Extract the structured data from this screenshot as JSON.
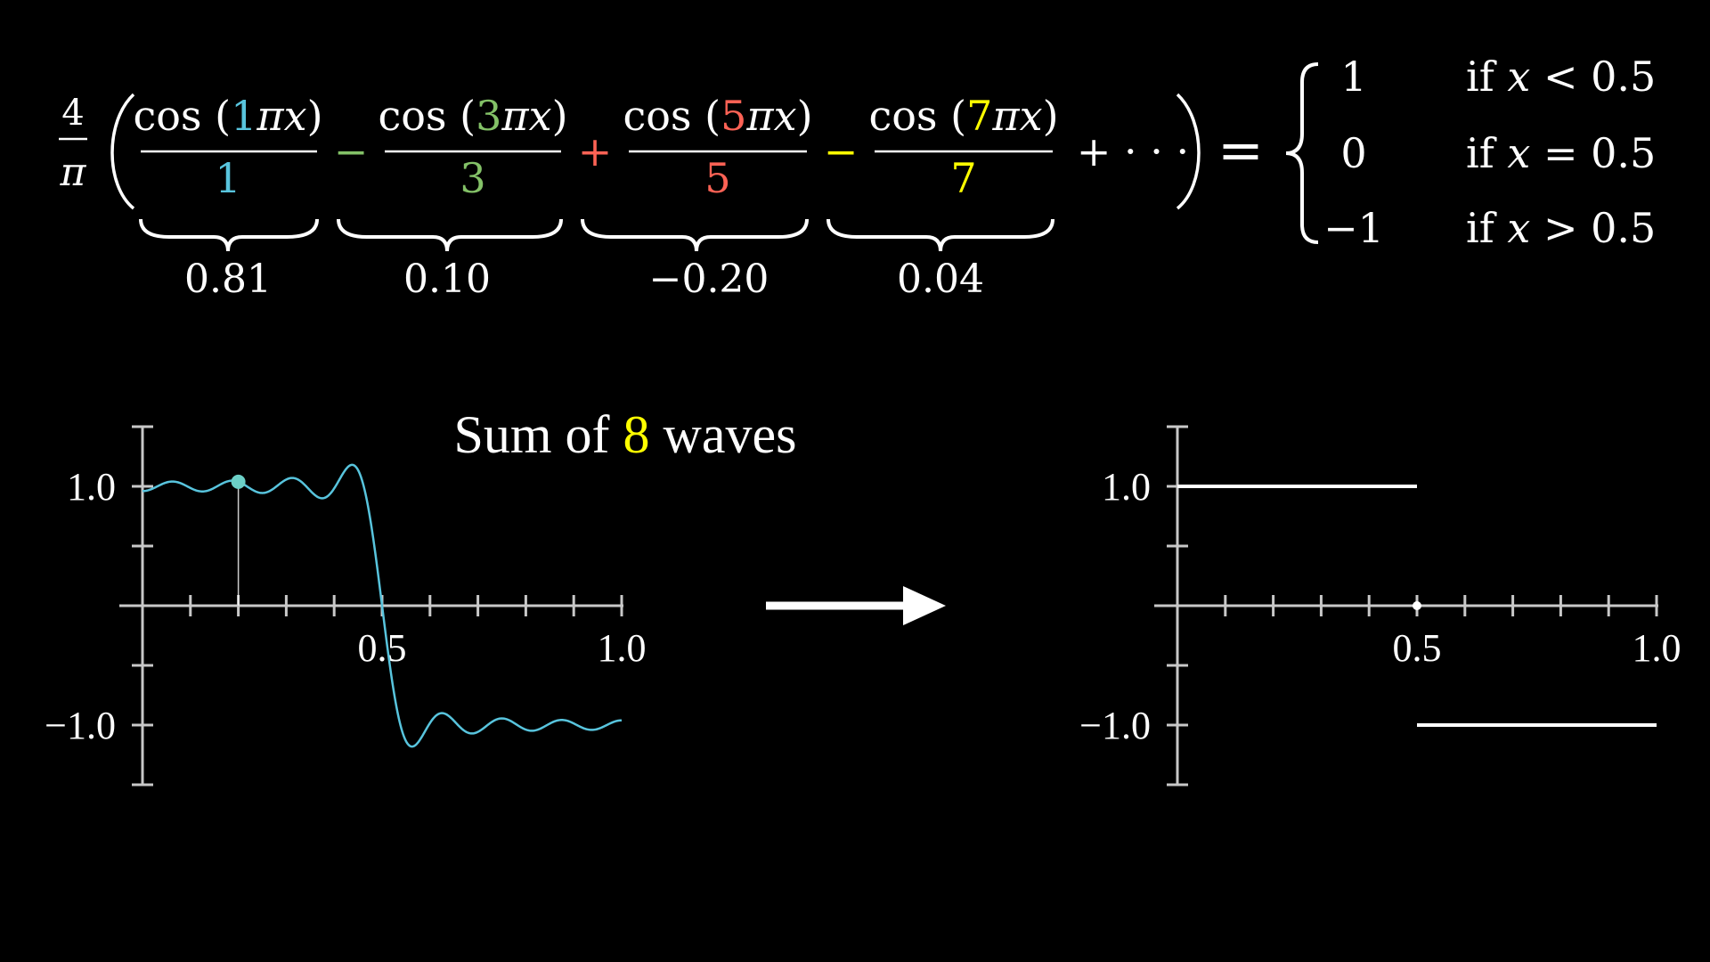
{
  "colors": {
    "background": "#000000",
    "foreground": "#ffffff",
    "axis": "#c8c8c8",
    "term1": "#58c4dd",
    "term3": "#83c167",
    "term5": "#fc6255",
    "term7": "#ffff00",
    "wave": "#58c4dd",
    "count": "#ffff00"
  },
  "formula": {
    "coef_num": "4",
    "coef_den": "π",
    "terms": [
      {
        "n": "1",
        "den": "1",
        "value": "0.81",
        "sign": ""
      },
      {
        "n": "3",
        "den": "3",
        "value": "0.10",
        "sign": "−"
      },
      {
        "n": "5",
        "den": "5",
        "value": "−0.20",
        "sign": "+"
      },
      {
        "n": "7",
        "den": "7",
        "value": "0.04",
        "sign": "−"
      }
    ],
    "cos_label": "cos",
    "pi": "π",
    "x": "x",
    "tail": "+ · · ·",
    "equals": "=",
    "cases": [
      {
        "value": "1",
        "cond": "if",
        "x": "x",
        "rel": "<",
        "threshold": "0.5"
      },
      {
        "value": "0",
        "cond": "if",
        "x": "x",
        "rel": "=",
        "threshold": "0.5"
      },
      {
        "value": "−1",
        "cond": "if",
        "x": "x",
        "rel": ">",
        "threshold": "0.5"
      }
    ]
  },
  "caption": {
    "prefix": "Sum of",
    "count": "8",
    "suffix": "waves"
  },
  "chart_data": [
    {
      "type": "line",
      "name": "partial-sum",
      "function": "(4/π)·Σ_{k=0}^{7} (−1)^k cos((2k+1)πx)/(2k+1)",
      "n_terms": 8,
      "xlim": [
        0,
        1
      ],
      "ylim": [
        -1.5,
        1.5
      ],
      "x_ticks": [
        "0.5",
        "1.0"
      ],
      "y_ticks": [
        "1.0",
        "−1.0"
      ],
      "highlight_x": 0.2
    },
    {
      "type": "line",
      "name": "square-wave-limit",
      "segments": [
        {
          "x": [
            0,
            0.5
          ],
          "y": [
            1,
            1
          ]
        },
        {
          "x": [
            0.5,
            1.0
          ],
          "y": [
            -1,
            -1
          ]
        }
      ],
      "points": [
        {
          "x": 0.5,
          "y": 0
        }
      ],
      "xlim": [
        0,
        1
      ],
      "ylim": [
        -1.5,
        1.5
      ],
      "x_ticks": [
        "0.5",
        "1.0"
      ],
      "y_ticks": [
        "1.0",
        "−1.0"
      ]
    }
  ]
}
